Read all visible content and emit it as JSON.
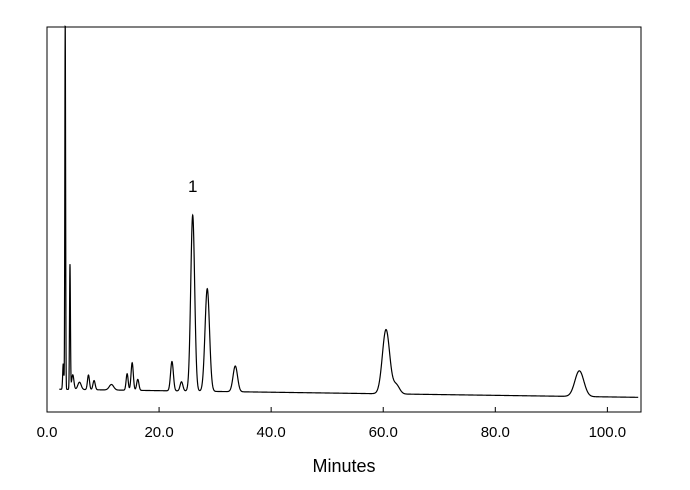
{
  "chart_data": {
    "type": "line",
    "title": "",
    "xlabel": "Minutes",
    "ylabel": "",
    "xlim": [
      0,
      106
    ],
    "ylim": [
      -5,
      100
    ],
    "x_ticks": [
      0,
      20,
      40,
      60,
      80,
      100
    ],
    "x_tick_labels": [
      "0.0",
      "20.0",
      "40.0",
      "60.0",
      "80.0",
      "100.0"
    ],
    "y_ticks_shown": false,
    "grid": false,
    "line_color": "#000000",
    "annotations": [
      {
        "text": "1",
        "x": 26.0,
        "y": 55
      }
    ],
    "series": [
      {
        "baseline": {
          "start": 1.2,
          "end": -1.0
        },
        "peaks": [
          {
            "x": 2.9,
            "height": 7,
            "width": 0.1
          },
          {
            "x": 3.25,
            "height": 100,
            "width": 0.07
          },
          {
            "x": 4.1,
            "height": 34,
            "width": 0.08
          },
          {
            "x": 4.6,
            "height": 4,
            "width": 0.2
          },
          {
            "x": 5.8,
            "height": 2,
            "width": 0.3
          },
          {
            "x": 7.4,
            "height": 4,
            "width": 0.18
          },
          {
            "x": 8.4,
            "height": 2.5,
            "width": 0.2
          },
          {
            "x": 11.5,
            "height": 1.5,
            "width": 0.4
          },
          {
            "x": 14.3,
            "height": 4.5,
            "width": 0.18
          },
          {
            "x": 15.2,
            "height": 7.5,
            "width": 0.2
          },
          {
            "x": 16.2,
            "height": 3,
            "width": 0.2
          },
          {
            "x": 22.3,
            "height": 8,
            "width": 0.25
          },
          {
            "x": 24.0,
            "height": 2.5,
            "width": 0.25
          },
          {
            "x": 26.0,
            "height": 48,
            "width": 0.35
          },
          {
            "x": 28.6,
            "height": 28,
            "width": 0.4
          },
          {
            "x": 33.6,
            "height": 7,
            "width": 0.4
          },
          {
            "x": 60.5,
            "height": 17.5,
            "width": 0.65
          },
          {
            "x": 62.3,
            "height": 2.5,
            "width": 0.6
          },
          {
            "x": 95.0,
            "height": 7,
            "width": 0.8
          }
        ]
      }
    ]
  }
}
